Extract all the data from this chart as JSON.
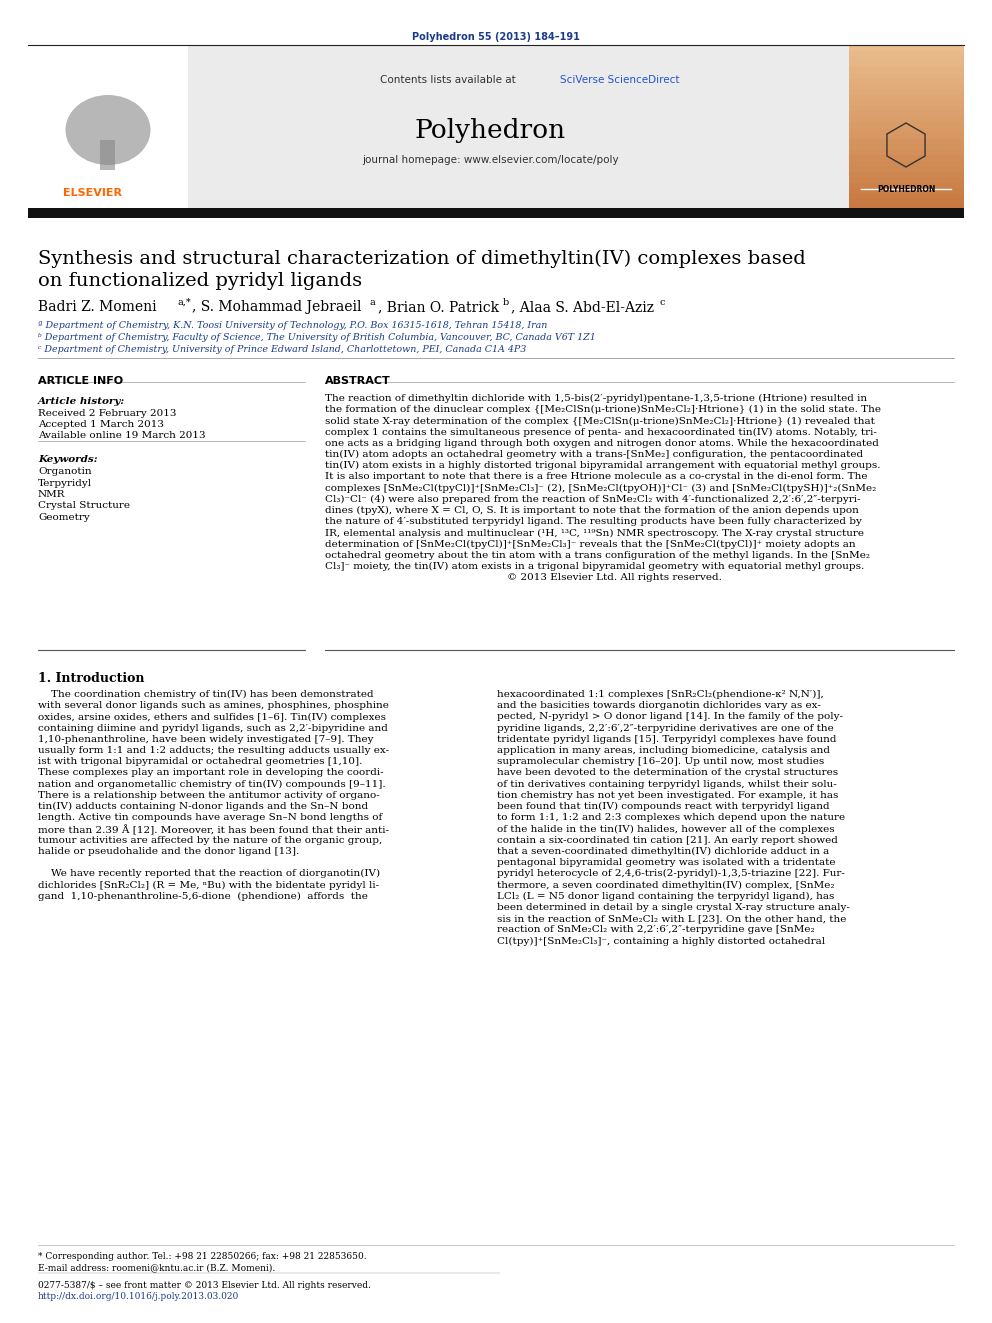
{
  "bg_color": "#ffffff",
  "journal_ref": "Polyhedron 55 (2013) 184–191",
  "journal_ref_color": "#1a3a8a",
  "sciverse_color": "#2255cc",
  "header_bg": "#e8e8e8",
  "elsevier_color": "#ff6600",
  "poly_bg_top": "#c87941",
  "poly_bg_bot": "#e8c090",
  "paper_title_line1": "Synthesis and structural characterization of dimethyltin(IV) complexes based",
  "paper_title_line2": "on functionalized pyridyl ligands",
  "author_line": "Badri Z. Momeni",
  "affil_a": "ª Department of Chemistry, K.N. Toosi University of Technology, P.O. Box 16315-1618, Tehran 15418, Iran",
  "affil_b": "ᵇ Department of Chemistry, Faculty of Science, The University of British Columbia, Vancouver, BC, Canada V6T 1Z1",
  "affil_c": "ᶜ Department of Chemistry, University of Prince Edward Island, Charlottetown, PEI, Canada C1A 4P3",
  "article_info_header": "ARTICLE INFO",
  "abstract_header": "ABSTRACT",
  "article_history_label": "Article history:",
  "received": "Received 2 February 2013",
  "accepted": "Accepted 1 March 2013",
  "available": "Available online 19 March 2013",
  "keywords_label": "Keywords:",
  "keywords": [
    "Organotin",
    "Terpyridyl",
    "NMR",
    "Crystal Structure",
    "Geometry"
  ],
  "abstract_lines": [
    "The reaction of dimethyltin dichloride with 1,5-bis(2′-pyridyl)pentane-1,3,5-trione (Htrione) resulted in",
    "the formation of the dinuclear complex {[Me₂ClSn(μ-trione)SnMe₂Cl₂]·Htrione} (1) in the solid state. The",
    "solid state X-ray determination of the complex {[Me₂ClSn(μ-trione)SnMe₂Cl₂]·Htrione} (1) revealed that",
    "complex 1 contains the simultaneous presence of penta- and hexacoordinated tin(IV) atoms. Notably, tri-",
    "one acts as a bridging ligand through both oxygen and nitrogen donor atoms. While the hexacoordinated",
    "tin(IV) atom adopts an octahedral geometry with a trans-[SnMe₂] configuration, the pentacoordinated",
    "tin(IV) atom exists in a highly distorted trigonal bipyramidal arrangement with equatorial methyl groups.",
    "It is also important to note that there is a free Htrione molecule as a co-crystal in the di-enol form. The",
    "complexes [SnMe₂Cl(tpyCl)]⁺[SnMe₂Cl₃]⁻ (2), [SnMe₂Cl(tpyOH)]⁺Cl⁻ (3) and [SnMe₂Cl(tpySH)]⁺₂(SnMe₂",
    "Cl₃)⁻Cl⁻ (4) were also prepared from the reaction of SnMe₂Cl₂ with 4′-functionalized 2,2′:6′,2″-terpyri-",
    "dines (tpyX), where X = Cl, O, S. It is important to note that the formation of the anion depends upon",
    "the nature of 4′-substituted terpyridyl ligand. The resulting products have been fully characterized by",
    "IR, elemental analysis and multinuclear (¹H, ¹³C, ¹¹⁹Sn) NMR spectroscopy. The X-ray crystal structure",
    "determination of [SnMe₂Cl(tpyCl)]⁺[SnMe₂Cl₃]⁻ reveals that the [SnMe₂Cl(tpyCl)]⁺ moiety adopts an",
    "octahedral geometry about the tin atom with a trans configuration of the methyl ligands. In the [SnMe₂",
    "Cl₃]⁻ moiety, the tin(IV) atom exists in a trigonal bipyramidal geometry with equatorial methyl groups.",
    "                                                        © 2013 Elsevier Ltd. All rights reserved."
  ],
  "intro_header": "1. Introduction",
  "intro_col1_lines": [
    "    The coordination chemistry of tin(IV) has been demonstrated",
    "with several donor ligands such as amines, phosphines, phosphine",
    "oxides, arsine oxides, ethers and sulfides [1–6]. Tin(IV) complexes",
    "containing diimine and pyridyl ligands, such as 2,2′-bipyridine and",
    "1,10-phenanthroline, have been widely investigated [7–9]. They",
    "usually form 1:1 and 1:2 adducts; the resulting adducts usually ex-",
    "ist with trigonal bipyramidal or octahedral geometries [1,10].",
    "These complexes play an important role in developing the coordi-",
    "nation and organometallic chemistry of tin(IV) compounds [9–11].",
    "There is a relationship between the antitumor activity of organo-",
    "tin(IV) adducts containing N-donor ligands and the Sn–N bond",
    "length. Active tin compounds have average Sn–N bond lengths of",
    "more than 2.39 Å [12]. Moreover, it has been found that their anti-",
    "tumour activities are affected by the nature of the organic group,",
    "halide or pseudohalide and the donor ligand [13].",
    "",
    "    We have recently reported that the reaction of diorganotin(IV)",
    "dichlorides [SnR₂Cl₂] (R = Me, ⁿBu) with the bidentate pyridyl li-",
    "gand  1,10-phenanthroline-5,6-dione  (phendione)  affords  the"
  ],
  "intro_col2_lines": [
    "hexacoordinated 1:1 complexes [SnR₂Cl₂(phendione-κ² N,N′)],",
    "and the basicities towards diorganotin dichlorides vary as ex-",
    "pected, N-pyridyl > O donor ligand [14]. In the family of the poly-",
    "pyridine ligands, 2,2′:6′,2″-terpyridine derivatives are one of the",
    "tridentate pyridyl ligands [15]. Terpyridyl complexes have found",
    "application in many areas, including biomedicine, catalysis and",
    "supramolecular chemistry [16–20]. Up until now, most studies",
    "have been devoted to the determination of the crystal structures",
    "of tin derivatives containing terpyridyl ligands, whilst their solu-",
    "tion chemistry has not yet been investigated. For example, it has",
    "been found that tin(IV) compounds react with terpyridyl ligand",
    "to form 1:1, 1:2 and 2:3 complexes which depend upon the nature",
    "of the halide in the tin(IV) halides, however all of the complexes",
    "contain a six-coordinated tin cation [21]. An early report showed",
    "that a seven-coordinated dimethyltin(IV) dichloride adduct in a",
    "pentagonal bipyramidal geometry was isolated with a tridentate",
    "pyridyl heterocycle of 2,4,6-tris(2-pyridyl)-1,3,5-triazine [22]. Fur-",
    "thermore, a seven coordinated dimethyltin(IV) complex, [SnMe₂",
    "LCl₂ (L = N5 donor ligand containing the terpyridyl ligand), has",
    "been determined in detail by a single crystal X-ray structure analy-",
    "sis in the reaction of SnMe₂Cl₂ with L [23]. On the other hand, the",
    "reaction of SnMe₂Cl₂ with 2,2′:6′,2″-terpyridine gave [SnMe₂",
    "Cl(tpy)]⁺[SnMe₂Cl₃]⁻, containing a highly distorted octahedral"
  ],
  "footer_star": "* Corresponding author. Tel.: +98 21 22850266; fax: +98 21 22853650.",
  "footer_email": "E-mail address: roomeni@kntu.ac.ir (B.Z. Momeni).",
  "footer_copy": "0277-5387/$ – see front matter © 2013 Elsevier Ltd. All rights reserved.",
  "footer_doi": "http://dx.doi.org/10.1016/j.poly.2013.03.020"
}
